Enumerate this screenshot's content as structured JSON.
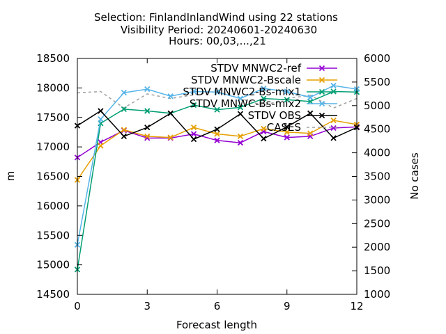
{
  "chart_data": {
    "type": "line",
    "title_lines": [
      "Selection: FinlandInlandWind using    22 stations",
      "Visibility   Period: 20240601-20240630",
      "Hours: 00,03,...,21"
    ],
    "xlabel": "Forecast length",
    "ylabel": "m",
    "y2label": "No cases",
    "xlim": [
      0,
      12
    ],
    "ylim": [
      14500,
      18500
    ],
    "y2lim": [
      1000,
      6000
    ],
    "x_ticks": [
      0,
      3,
      6,
      9,
      12
    ],
    "y_ticks": [
      14500,
      15000,
      15500,
      16000,
      16500,
      17000,
      17500,
      18000,
      18500
    ],
    "y2_ticks": [
      1000,
      1500,
      2000,
      2500,
      3000,
      3500,
      4000,
      4500,
      5000,
      5500,
      6000
    ],
    "legend_position": "top-right",
    "grid": false,
    "x": [
      0,
      1,
      2,
      3,
      4,
      5,
      6,
      7,
      8,
      9,
      10,
      11,
      12
    ],
    "series": [
      {
        "name": "STDV MNWC2-ref",
        "color": "#9400d3",
        "marker": "x",
        "axis": "left",
        "values": [
          16820,
          17080,
          17280,
          17150,
          17150,
          17220,
          17110,
          17070,
          17260,
          17160,
          17180,
          17320,
          17340
        ]
      },
      {
        "name": "STDV MNWC2-Bscale",
        "color": "#e69f00",
        "marker": "x",
        "axis": "left",
        "values": [
          16440,
          17020,
          17290,
          17180,
          17160,
          17330,
          17220,
          17180,
          17310,
          17250,
          17230,
          17450,
          17380
        ]
      },
      {
        "name": "STDV MNWC2-Bs-mix1",
        "color": "#009e73",
        "marker": "x",
        "axis": "left",
        "values": [
          14920,
          17400,
          17640,
          17610,
          17570,
          17710,
          17630,
          17670,
          17820,
          17800,
          17770,
          17940,
          17930
        ]
      },
      {
        "name": "STDV MNWC-Bs-mix2",
        "color": "#56b4e9",
        "marker": "x",
        "axis": "left",
        "values": [
          15340,
          17470,
          17920,
          17980,
          17860,
          17940,
          17930,
          17820,
          17990,
          17940,
          17840,
          18040,
          17980
        ]
      },
      {
        "name": "STDV OBS",
        "color": "#000000",
        "marker": "x",
        "axis": "left",
        "values": [
          17360,
          17610,
          17180,
          17330,
          17570,
          17130,
          17300,
          17560,
          17140,
          17340,
          17570,
          17150,
          17330
        ]
      },
      {
        "name": "CASES",
        "color": "#a0a0a0",
        "marker": "none",
        "dashed": true,
        "axis": "right",
        "values": [
          5270,
          5300,
          4950,
          5250,
          5150,
          5230,
          5300,
          5150,
          5000,
          5150,
          5220,
          4950,
          5150
        ]
      }
    ]
  }
}
